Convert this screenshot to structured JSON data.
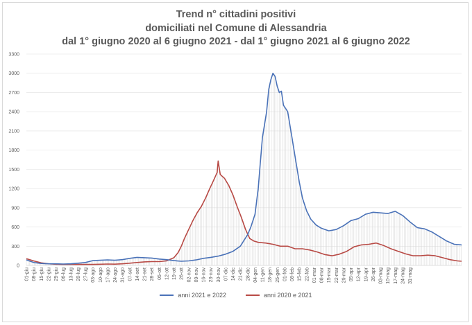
{
  "title_lines": [
    "Trend n° cittadini positivi",
    "domiciliati nel Comune di Alessandria",
    "dal 1° giugno 2020 al 6 giugno 2021 - dal 1° giugno 2021 al 6 giugno 2022"
  ],
  "colors": {
    "series_2122": "#4a72b8",
    "series_2021": "#b84a45",
    "grid": "#e0e0e0",
    "fill": "#d6d6d6"
  },
  "chart_data": {
    "type": "line",
    "title": "Trend n° cittadini positivi domiciliati nel Comune di Alessandria dal 1° giugno 2020 al 6 giugno 2021 - dal 1° giugno 2021 al 6 giugno 2022",
    "xlabel": "",
    "ylabel": "",
    "ylim": [
      0,
      3300
    ],
    "yticks": [
      0,
      300,
      600,
      900,
      1200,
      1500,
      1800,
      2100,
      2400,
      2700,
      3000,
      3300
    ],
    "grid": true,
    "legend_position": "bottom",
    "x_tick_labels": [
      "01-giu",
      "08-giu",
      "15-giu",
      "22-giu",
      "29-giu",
      "06-lug",
      "13-lug",
      "20-lug",
      "27-lug",
      "03-ago",
      "10-ago",
      "17-ago",
      "24-ago",
      "31-ago",
      "07-set",
      "14-set",
      "21-set",
      "28-set",
      "05-ott",
      "12-ott",
      "19-ott",
      "26-ott",
      "02-nov",
      "09-nov",
      "16-nov",
      "23-nov",
      "30-nov",
      "07-dic",
      "14-dic",
      "21-dic",
      "28-dic",
      "04-gen",
      "11-gen",
      "18-gen",
      "25-gen",
      "01-feb",
      "08-feb",
      "15-feb",
      "22-feb",
      "01-mar",
      "08-mar",
      "15-mar",
      "22-mar",
      "29-mar",
      "05-apr",
      "12-apr",
      "19-apr",
      "26-apr",
      "03-mag",
      "10-mag",
      "17-mag",
      "24-mag",
      "31-mag"
    ],
    "series": [
      {
        "name": "anni 2021 e 2022",
        "color": "#4a72b8",
        "points": [
          [
            0,
            85
          ],
          [
            7,
            45
          ],
          [
            14,
            30
          ],
          [
            21,
            25
          ],
          [
            28,
            25
          ],
          [
            35,
            22
          ],
          [
            42,
            25
          ],
          [
            49,
            35
          ],
          [
            56,
            45
          ],
          [
            63,
            75
          ],
          [
            70,
            80
          ],
          [
            77,
            85
          ],
          [
            84,
            80
          ],
          [
            91,
            90
          ],
          [
            98,
            110
          ],
          [
            105,
            125
          ],
          [
            112,
            120
          ],
          [
            119,
            115
          ],
          [
            126,
            100
          ],
          [
            133,
            90
          ],
          [
            140,
            75
          ],
          [
            147,
            65
          ],
          [
            154,
            70
          ],
          [
            161,
            85
          ],
          [
            168,
            110
          ],
          [
            175,
            125
          ],
          [
            182,
            145
          ],
          [
            189,
            175
          ],
          [
            196,
            220
          ],
          [
            203,
            300
          ],
          [
            210,
            480
          ],
          [
            213,
            600
          ],
          [
            217,
            800
          ],
          [
            220,
            1200
          ],
          [
            222,
            1600
          ],
          [
            224,
            2000
          ],
          [
            226,
            2200
          ],
          [
            228,
            2400
          ],
          [
            230,
            2750
          ],
          [
            232,
            2900
          ],
          [
            234,
            3000
          ],
          [
            236,
            2950
          ],
          [
            238,
            2800
          ],
          [
            240,
            2700
          ],
          [
            242,
            2720
          ],
          [
            244,
            2500
          ],
          [
            246,
            2450
          ],
          [
            248,
            2400
          ],
          [
            252,
            2000
          ],
          [
            256,
            1600
          ],
          [
            259,
            1300
          ],
          [
            262,
            1050
          ],
          [
            266,
            850
          ],
          [
            270,
            720
          ],
          [
            275,
            630
          ],
          [
            280,
            580
          ],
          [
            287,
            540
          ],
          [
            294,
            560
          ],
          [
            301,
            620
          ],
          [
            308,
            700
          ],
          [
            315,
            730
          ],
          [
            322,
            800
          ],
          [
            329,
            830
          ],
          [
            336,
            820
          ],
          [
            343,
            810
          ],
          [
            350,
            845
          ],
          [
            357,
            780
          ],
          [
            364,
            680
          ],
          [
            371,
            590
          ],
          [
            378,
            570
          ],
          [
            385,
            520
          ],
          [
            392,
            450
          ],
          [
            399,
            380
          ],
          [
            406,
            330
          ],
          [
            413,
            320
          ]
        ]
      },
      {
        "name": "anni 2020 e 2021",
        "color": "#b84a45",
        "points": [
          [
            0,
            105
          ],
          [
            7,
            70
          ],
          [
            14,
            40
          ],
          [
            21,
            25
          ],
          [
            28,
            18
          ],
          [
            35,
            15
          ],
          [
            42,
            15
          ],
          [
            49,
            15
          ],
          [
            56,
            15
          ],
          [
            63,
            15
          ],
          [
            70,
            18
          ],
          [
            77,
            22
          ],
          [
            84,
            20
          ],
          [
            91,
            25
          ],
          [
            98,
            35
          ],
          [
            105,
            45
          ],
          [
            112,
            55
          ],
          [
            119,
            60
          ],
          [
            126,
            60
          ],
          [
            133,
            70
          ],
          [
            140,
            120
          ],
          [
            144,
            200
          ],
          [
            147,
            300
          ],
          [
            150,
            420
          ],
          [
            154,
            560
          ],
          [
            158,
            700
          ],
          [
            162,
            820
          ],
          [
            166,
            920
          ],
          [
            170,
            1050
          ],
          [
            174,
            1200
          ],
          [
            178,
            1340
          ],
          [
            181,
            1450
          ],
          [
            182,
            1630
          ],
          [
            184,
            1420
          ],
          [
            188,
            1360
          ],
          [
            192,
            1250
          ],
          [
            196,
            1100
          ],
          [
            200,
            920
          ],
          [
            204,
            750
          ],
          [
            208,
            560
          ],
          [
            212,
            420
          ],
          [
            216,
            380
          ],
          [
            220,
            360
          ],
          [
            227,
            350
          ],
          [
            234,
            330
          ],
          [
            241,
            300
          ],
          [
            248,
            300
          ],
          [
            255,
            260
          ],
          [
            262,
            260
          ],
          [
            269,
            240
          ],
          [
            276,
            210
          ],
          [
            283,
            170
          ],
          [
            290,
            150
          ],
          [
            297,
            175
          ],
          [
            304,
            220
          ],
          [
            311,
            290
          ],
          [
            318,
            320
          ],
          [
            325,
            330
          ],
          [
            332,
            350
          ],
          [
            339,
            310
          ],
          [
            346,
            260
          ],
          [
            353,
            220
          ],
          [
            360,
            180
          ],
          [
            367,
            150
          ],
          [
            374,
            150
          ],
          [
            381,
            160
          ],
          [
            388,
            150
          ],
          [
            395,
            120
          ],
          [
            402,
            90
          ],
          [
            409,
            70
          ],
          [
            413,
            65
          ]
        ]
      }
    ]
  },
  "legend": [
    {
      "label": "anni 2021 e 2022",
      "color": "#4a72b8"
    },
    {
      "label": "anni 2020 e 2021",
      "color": "#b84a45"
    }
  ]
}
